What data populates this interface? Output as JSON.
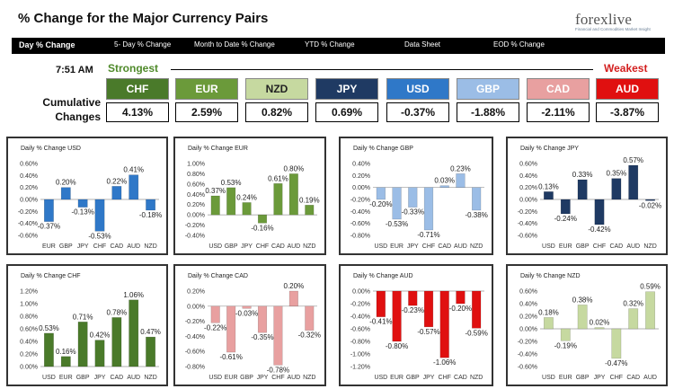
{
  "header": {
    "title": "% Change for the Major Currency Pairs",
    "logo_text": "forexlive",
    "logo_tagline": "Financial and Commodities Market Insight"
  },
  "nav": [
    {
      "label": "Day % Change"
    },
    {
      "label": "5- Day % Change"
    },
    {
      "label": "Month to Date % Change"
    },
    {
      "label": "YTD % Change"
    },
    {
      "label": "Data Sheet"
    },
    {
      "label": "EOD % Change"
    }
  ],
  "summary": {
    "time": "7:51 AM",
    "strongest_label": "Strongest",
    "weakest_label": "Weakest",
    "cumulative_label_line1": "Cumulative",
    "cumulative_label_line2": "Changes",
    "currencies": [
      {
        "code": "CHF",
        "value": "4.13%",
        "color": "#4a7a2a"
      },
      {
        "code": "EUR",
        "value": "2.59%",
        "color": "#6b9a3a"
      },
      {
        "code": "NZD",
        "value": "0.82%",
        "color": "#c6d9a0"
      },
      {
        "code": "JPY",
        "value": "0.69%",
        "color": "#1f3a63"
      },
      {
        "code": "USD",
        "value": "-0.37%",
        "color": "#2f78c8"
      },
      {
        "code": "GBP",
        "value": "-1.88%",
        "color": "#9bbde6"
      },
      {
        "code": "CAD",
        "value": "-2.11%",
        "color": "#e8a0a0"
      },
      {
        "code": "AUD",
        "value": "-3.87%",
        "color": "#e01010"
      }
    ]
  },
  "chart_data": [
    {
      "type": "bar",
      "title": "Daily % Change USD",
      "color": "#2f78c8",
      "categories": [
        "EUR",
        "GBP",
        "JPY",
        "CHF",
        "CAD",
        "AUD",
        "NZD"
      ],
      "values": [
        -0.37,
        0.2,
        -0.13,
        -0.53,
        0.22,
        0.41,
        -0.18
      ],
      "labels": [
        "-0.37%",
        "0.20%",
        "-0.13%",
        "-0.53%",
        "0.22%",
        "0.41%",
        "-0.18%"
      ],
      "ylim": [
        -0.6,
        0.6
      ],
      "ticks": [
        "0.60%",
        "0.40%",
        "0.20%",
        "0.00%",
        "-0.20%",
        "-0.40%",
        "-0.60%"
      ]
    },
    {
      "type": "bar",
      "title": "Daily % Change EUR",
      "color": "#6b9a3a",
      "categories": [
        "USD",
        "GBP",
        "JPY",
        "CHF",
        "CAD",
        "AUD",
        "NZD"
      ],
      "values": [
        0.37,
        0.53,
        0.24,
        -0.16,
        0.61,
        0.8,
        0.19
      ],
      "labels": [
        "0.37%",
        "0.53%",
        "0.24%",
        "-0.16%",
        "0.61%",
        "0.80%",
        "0.19%"
      ],
      "ylim": [
        -0.4,
        1.0
      ],
      "ticks": [
        "1.00%",
        "0.80%",
        "0.60%",
        "0.40%",
        "0.20%",
        "0.00%",
        "-0.20%",
        "-0.40%"
      ]
    },
    {
      "type": "bar",
      "title": "Daily % Change GBP",
      "color": "#9bbde6",
      "categories": [
        "USD",
        "EUR",
        "JPY",
        "CHF",
        "CAD",
        "AUD",
        "NZD"
      ],
      "values": [
        -0.2,
        -0.53,
        -0.33,
        -0.71,
        0.03,
        0.23,
        -0.38
      ],
      "labels": [
        "-0.20%",
        "-0.53%",
        "-0.33%",
        "-0.71%",
        "0.03%",
        "0.23%",
        "-0.38%"
      ],
      "ylim": [
        -0.8,
        0.4
      ],
      "ticks": [
        "0.40%",
        "0.20%",
        "0.00%",
        "-0.20%",
        "-0.40%",
        "-0.60%",
        "-0.80%"
      ]
    },
    {
      "type": "bar",
      "title": "Daily % Change JPY",
      "color": "#1f3a63",
      "categories": [
        "USD",
        "EUR",
        "GBP",
        "CHF",
        "CAD",
        "AUD",
        "NZD"
      ],
      "values": [
        0.13,
        -0.24,
        0.33,
        -0.42,
        0.35,
        0.57,
        -0.02
      ],
      "labels": [
        "0.13%",
        "-0.24%",
        "0.33%",
        "-0.42%",
        "0.35%",
        "0.57%",
        "-0.02%"
      ],
      "ylim": [
        -0.6,
        0.6
      ],
      "ticks": [
        "0.60%",
        "0.40%",
        "0.20%",
        "0.00%",
        "-0.20%",
        "-0.40%",
        "-0.60%"
      ]
    },
    {
      "type": "bar",
      "title": "Daily % Change CHF",
      "color": "#4a7a2a",
      "categories": [
        "USD",
        "EUR",
        "GBP",
        "JPY",
        "CAD",
        "AUD",
        "NZD"
      ],
      "values": [
        0.53,
        0.16,
        0.71,
        0.42,
        0.78,
        1.06,
        0.47
      ],
      "labels": [
        "0.53%",
        "0.16%",
        "0.71%",
        "0.42%",
        "0.78%",
        "1.06%",
        "0.47%"
      ],
      "ylim": [
        0.0,
        1.2
      ],
      "ticks": [
        "1.20%",
        "1.00%",
        "0.80%",
        "0.60%",
        "0.40%",
        "0.20%",
        "0.00%"
      ]
    },
    {
      "type": "bar",
      "title": "Daily % Change CAD",
      "color": "#e8a0a0",
      "categories": [
        "USD",
        "EUR",
        "GBP",
        "JPY",
        "CHF",
        "AUD",
        "NZD"
      ],
      "values": [
        -0.22,
        -0.61,
        -0.03,
        -0.35,
        -0.78,
        0.2,
        -0.32
      ],
      "labels": [
        "-0.22%",
        "-0.61%",
        "-0.03%",
        "-0.35%",
        "-0.78%",
        "0.20%",
        "-0.32%"
      ],
      "ylim": [
        -0.8,
        0.2
      ],
      "ticks": [
        "0.20%",
        "0.00%",
        "-0.20%",
        "-0.40%",
        "-0.60%",
        "-0.80%"
      ]
    },
    {
      "type": "bar",
      "title": "Daily % Change AUD",
      "color": "#e01010",
      "categories": [
        "USD",
        "EUR",
        "GBP",
        "JPY",
        "CHF",
        "CAD",
        "NZD"
      ],
      "values": [
        -0.41,
        -0.8,
        -0.23,
        -0.57,
        -1.06,
        -0.2,
        -0.59
      ],
      "labels": [
        "-0.41%",
        "-0.80%",
        "-0.23%",
        "-0.57%",
        "-1.06%",
        "-0.20%",
        "-0.59%"
      ],
      "ylim": [
        -1.2,
        0.0
      ],
      "ticks": [
        "0.00%",
        "-0.20%",
        "-0.40%",
        "-0.60%",
        "-0.80%",
        "-1.00%",
        "-1.20%"
      ]
    },
    {
      "type": "bar",
      "title": "Daily % Change NZD",
      "color": "#c6d9a0",
      "categories": [
        "USD",
        "EUR",
        "GBP",
        "JPY",
        "CHF",
        "CAD",
        "AUD"
      ],
      "values": [
        0.18,
        -0.19,
        0.38,
        0.02,
        -0.47,
        0.32,
        0.59
      ],
      "labels": [
        "0.18%",
        "-0.19%",
        "0.38%",
        "0.02%",
        "-0.47%",
        "0.32%",
        "0.59%"
      ],
      "ylim": [
        -0.6,
        0.6
      ],
      "ticks": [
        "0.60%",
        "0.40%",
        "0.20%",
        "0.00%",
        "-0.20%",
        "-0.40%",
        "-0.60%"
      ]
    }
  ]
}
